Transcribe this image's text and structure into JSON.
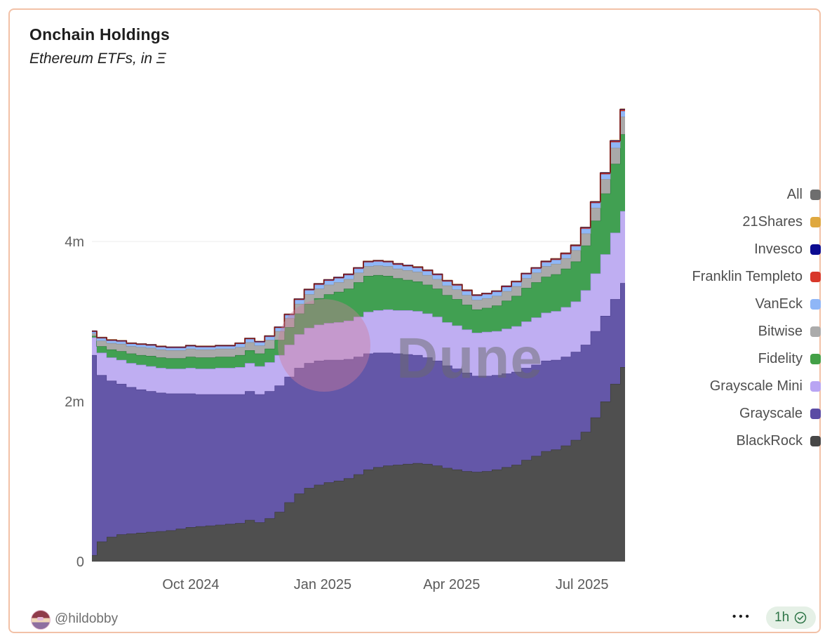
{
  "header": {
    "title": "Onchain Holdings",
    "subtitle": "Ethereum ETFs, in Ξ"
  },
  "watermark": {
    "text": "Dune"
  },
  "legend": {
    "items": [
      {
        "label": "All",
        "color": "#6e6e6e"
      },
      {
        "label": "21Shares",
        "color": "#dfa83f"
      },
      {
        "label": "Invesco",
        "color": "#0c0c91"
      },
      {
        "label": "Franklin Templeto",
        "color": "#d8372a"
      },
      {
        "label": "VanEck",
        "color": "#8fb6f7"
      },
      {
        "label": "Bitwise",
        "color": "#ababab"
      },
      {
        "label": "Fidelity",
        "color": "#43a047"
      },
      {
        "label": "Grayscale Mini",
        "color": "#b9a5f3"
      },
      {
        "label": "Grayscale",
        "color": "#5b4ba4"
      },
      {
        "label": "BlackRock",
        "color": "#474747"
      }
    ]
  },
  "footer": {
    "author": "@hildobby",
    "menu": "•••",
    "badge": "1h"
  },
  "chart_data": {
    "type": "area",
    "stacked": true,
    "title": "Onchain Holdings",
    "subtitle": "Ethereum ETFs, in Ξ",
    "unit": "ETH, millions",
    "ylim": [
      0,
      5.8
    ],
    "grid": "horizontal",
    "legend_position": "right",
    "span_days": 372,
    "y_ticks": [
      {
        "label": "0",
        "value": 0
      },
      {
        "label": "2m",
        "value": 2
      },
      {
        "label": "4m",
        "value": 4
      }
    ],
    "x_ticks": [
      {
        "label": "Oct 2024",
        "day": 69
      },
      {
        "label": "Jan 2025",
        "day": 161
      },
      {
        "label": "Apr 2025",
        "day": 251
      },
      {
        "label": "Jul 2025",
        "day": 342
      }
    ],
    "series": [
      {
        "name": "BlackRock",
        "fill": "#4f4f4f",
        "stroke": "#3c3c3c",
        "stroke_w": 1.4,
        "values": [
          0.08,
          0.25,
          0.31,
          0.34,
          0.35,
          0.36,
          0.37,
          0.38,
          0.39,
          0.41,
          0.43,
          0.44,
          0.45,
          0.46,
          0.47,
          0.48,
          0.52,
          0.49,
          0.54,
          0.62,
          0.74,
          0.85,
          0.92,
          0.96,
          0.99,
          1.01,
          1.04,
          1.09,
          1.15,
          1.18,
          1.2,
          1.21,
          1.22,
          1.23,
          1.22,
          1.2,
          1.17,
          1.15,
          1.13,
          1.12,
          1.13,
          1.15,
          1.18,
          1.21,
          1.27,
          1.32,
          1.38,
          1.4,
          1.45,
          1.52,
          1.62,
          1.8,
          2.0,
          2.22,
          2.43
        ]
      },
      {
        "name": "Grayscale",
        "fill": "#6457a8",
        "stroke": "#4e4190",
        "stroke_w": 1.4,
        "values": [
          2.5,
          2.08,
          1.95,
          1.88,
          1.83,
          1.79,
          1.76,
          1.73,
          1.71,
          1.69,
          1.67,
          1.65,
          1.64,
          1.63,
          1.62,
          1.61,
          1.61,
          1.6,
          1.59,
          1.58,
          1.57,
          1.57,
          1.56,
          1.55,
          1.53,
          1.51,
          1.49,
          1.47,
          1.45,
          1.43,
          1.41,
          1.39,
          1.37,
          1.35,
          1.33,
          1.31,
          1.28,
          1.26,
          1.23,
          1.2,
          1.19,
          1.18,
          1.17,
          1.16,
          1.15,
          1.14,
          1.13,
          1.12,
          1.11,
          1.1,
          1.09,
          1.08,
          1.07,
          1.06,
          1.05
        ]
      },
      {
        "name": "Grayscale Mini",
        "fill": "#bfaef2",
        "stroke": "#a391e3",
        "stroke_w": 1.4,
        "values": [
          0.22,
          0.28,
          0.29,
          0.3,
          0.3,
          0.31,
          0.31,
          0.31,
          0.31,
          0.31,
          0.32,
          0.32,
          0.32,
          0.33,
          0.33,
          0.34,
          0.35,
          0.35,
          0.36,
          0.38,
          0.4,
          0.42,
          0.44,
          0.45,
          0.46,
          0.47,
          0.48,
          0.5,
          0.52,
          0.53,
          0.54,
          0.54,
          0.55,
          0.55,
          0.55,
          0.55,
          0.54,
          0.54,
          0.54,
          0.54,
          0.55,
          0.55,
          0.56,
          0.57,
          0.58,
          0.59,
          0.6,
          0.61,
          0.62,
          0.63,
          0.68,
          0.72,
          0.77,
          0.83,
          0.9
        ]
      },
      {
        "name": "Fidelity",
        "fill": "#41a052",
        "stroke": "#2f7e3e",
        "stroke_w": 1.4,
        "values": [
          0.02,
          0.08,
          0.1,
          0.11,
          0.12,
          0.12,
          0.13,
          0.13,
          0.13,
          0.13,
          0.14,
          0.14,
          0.14,
          0.14,
          0.14,
          0.15,
          0.16,
          0.16,
          0.17,
          0.19,
          0.22,
          0.26,
          0.3,
          0.33,
          0.36,
          0.38,
          0.4,
          0.43,
          0.45,
          0.44,
          0.42,
          0.4,
          0.38,
          0.37,
          0.36,
          0.35,
          0.34,
          0.33,
          0.31,
          0.29,
          0.3,
          0.32,
          0.35,
          0.38,
          0.42,
          0.44,
          0.45,
          0.46,
          0.48,
          0.5,
          0.56,
          0.66,
          0.76,
          0.86,
          0.96
        ]
      },
      {
        "name": "Bitwise",
        "fill": "#a9a9a9",
        "stroke": "#8f8f8f",
        "stroke_w": 1.3,
        "values": [
          0.03,
          0.07,
          0.08,
          0.09,
          0.09,
          0.1,
          0.1,
          0.1,
          0.1,
          0.1,
          0.1,
          0.1,
          0.1,
          0.1,
          0.1,
          0.1,
          0.1,
          0.1,
          0.11,
          0.11,
          0.11,
          0.12,
          0.12,
          0.12,
          0.12,
          0.12,
          0.12,
          0.12,
          0.12,
          0.12,
          0.12,
          0.12,
          0.12,
          0.12,
          0.12,
          0.12,
          0.12,
          0.12,
          0.12,
          0.12,
          0.12,
          0.12,
          0.12,
          0.12,
          0.12,
          0.12,
          0.13,
          0.13,
          0.13,
          0.14,
          0.15,
          0.16,
          0.18,
          0.2,
          0.22
        ]
      },
      {
        "name": "VanEck",
        "fill": "#8fb7f7",
        "stroke": "#6f9aec",
        "stroke_w": 1.3,
        "values": [
          0.02,
          0.03,
          0.03,
          0.03,
          0.03,
          0.03,
          0.03,
          0.03,
          0.03,
          0.03,
          0.03,
          0.03,
          0.03,
          0.03,
          0.03,
          0.04,
          0.04,
          0.04,
          0.04,
          0.04,
          0.04,
          0.05,
          0.05,
          0.05,
          0.05,
          0.05,
          0.05,
          0.05,
          0.05,
          0.05,
          0.05,
          0.05,
          0.05,
          0.05,
          0.05,
          0.05,
          0.05,
          0.05,
          0.05,
          0.05,
          0.05,
          0.05,
          0.05,
          0.05,
          0.05,
          0.05,
          0.05,
          0.05,
          0.05,
          0.05,
          0.06,
          0.06,
          0.06,
          0.07,
          0.07
        ]
      },
      {
        "name": "Franklin Templeton",
        "fill": "#d63c2e",
        "stroke": "#7c150f",
        "stroke_w": 1.8,
        "values": [
          0.01,
          0.01,
          0.01,
          0.01,
          0.01,
          0.01,
          0.01,
          0.01,
          0.01,
          0.01,
          0.01,
          0.01,
          0.01,
          0.01,
          0.01,
          0.01,
          0.01,
          0.01,
          0.01,
          0.011,
          0.011,
          0.012,
          0.012,
          0.012,
          0.012,
          0.012,
          0.012,
          0.012,
          0.012,
          0.012,
          0.012,
          0.012,
          0.012,
          0.012,
          0.012,
          0.012,
          0.012,
          0.012,
          0.012,
          0.012,
          0.012,
          0.012,
          0.012,
          0.012,
          0.012,
          0.012,
          0.013,
          0.013,
          0.014,
          0.014,
          0.015,
          0.016,
          0.017,
          0.018,
          0.02
        ]
      },
      {
        "name": "Invesco",
        "fill": "#12128f",
        "stroke": "none",
        "stroke_w": 0,
        "values": [
          0.003,
          0.005,
          0.005,
          0.005,
          0.005,
          0.005,
          0.005,
          0.005,
          0.005,
          0.005,
          0.005,
          0.005,
          0.005,
          0.005,
          0.005,
          0.005,
          0.005,
          0.005,
          0.005,
          0.005,
          0.005,
          0.005,
          0.005,
          0.005,
          0.005,
          0.005,
          0.005,
          0.005,
          0.005,
          0.005,
          0.005,
          0.005,
          0.005,
          0.005,
          0.005,
          0.005,
          0.005,
          0.005,
          0.005,
          0.005,
          0.005,
          0.005,
          0.005,
          0.005,
          0.005,
          0.005,
          0.005,
          0.005,
          0.005,
          0.006,
          0.006,
          0.006,
          0.007,
          0.007,
          0.007
        ]
      },
      {
        "name": "21Shares",
        "fill": "#dca43c",
        "stroke": "none",
        "stroke_w": 0,
        "values": [
          0.002,
          0.003,
          0.003,
          0.003,
          0.003,
          0.003,
          0.003,
          0.003,
          0.003,
          0.003,
          0.003,
          0.003,
          0.003,
          0.003,
          0.003,
          0.003,
          0.003,
          0.003,
          0.003,
          0.003,
          0.003,
          0.003,
          0.003,
          0.003,
          0.003,
          0.003,
          0.003,
          0.003,
          0.003,
          0.003,
          0.003,
          0.003,
          0.003,
          0.003,
          0.003,
          0.003,
          0.003,
          0.003,
          0.003,
          0.003,
          0.003,
          0.003,
          0.003,
          0.003,
          0.003,
          0.003,
          0.003,
          0.003,
          0.003,
          0.004,
          0.004,
          0.004,
          0.004,
          0.005,
          0.005
        ]
      }
    ],
    "total_line": {
      "name": "All",
      "color": "#6e6e6e"
    }
  }
}
